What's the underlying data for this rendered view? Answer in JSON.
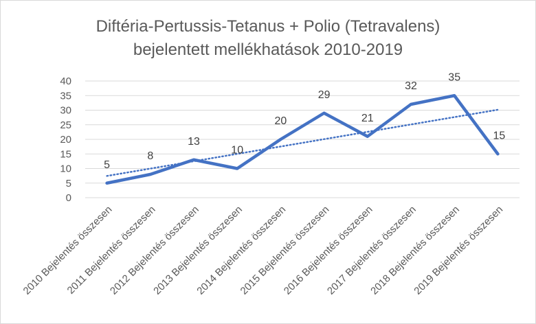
{
  "chart_data": {
    "type": "line",
    "title_line1": "Diftéria-Pertussis-Tetanus + Polio (Tetravalens)",
    "title_line2": "bejelentett mellékhatások 2010-2019",
    "categories": [
      "2010 Bejelentés összesen",
      "2011 Bejelentés összesen",
      "2012 Bejelentés összesen",
      "2013 Bejelentés összesen",
      "2014 Bejelentés összesen",
      "2015 Bejelentés összesen",
      "2016 Bejelentés összesen",
      "2017 Bejelentés összesen",
      "2018 Bejelentés összesen",
      "2019 Bejelentés összesen"
    ],
    "series": [
      {
        "values": [
          5,
          8,
          13,
          10,
          20,
          29,
          21,
          32,
          35,
          15
        ],
        "color": "#4472c4"
      }
    ],
    "trendline": {
      "type": "linear",
      "style": "dotted",
      "color": "#4472c4"
    },
    "ylim": [
      0,
      40
    ],
    "yticks": [
      0,
      5,
      10,
      15,
      20,
      25,
      30,
      35,
      40
    ],
    "grid": true,
    "data_labels": true,
    "legend": "none"
  }
}
